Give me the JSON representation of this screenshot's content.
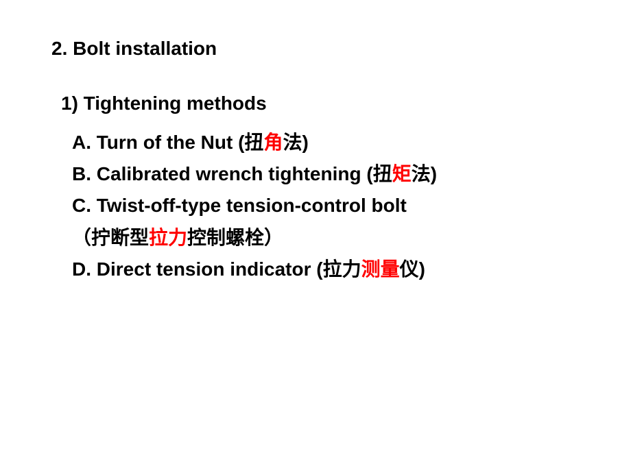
{
  "colors": {
    "background": "#ffffff",
    "text": "#000000",
    "highlight": "#ff0000"
  },
  "typography": {
    "font_family": "Arial, Microsoft YaHei, sans-serif",
    "heading_fontsize": 28,
    "body_fontsize": 28,
    "font_weight": "bold",
    "line_height": 1.65
  },
  "heading": "2. Bolt installation",
  "subheading": "1) Tightening methods",
  "items": {
    "A": {
      "prefix": "A. Turn of the Nut (扭",
      "highlight": "角",
      "suffix": "法)"
    },
    "B": {
      "prefix": "B. Calibrated wrench tightening (扭",
      "highlight": "矩",
      "suffix": "法)"
    },
    "C": {
      "line1": "C. Twist-off-type tension-control bolt",
      "line2_prefix": "（拧断型",
      "line2_highlight": "拉力",
      "line2_suffix": "控制螺栓）"
    },
    "D": {
      "prefix": "D. Direct tension indicator  (拉力",
      "highlight": "测量",
      "suffix": "仪)"
    }
  }
}
